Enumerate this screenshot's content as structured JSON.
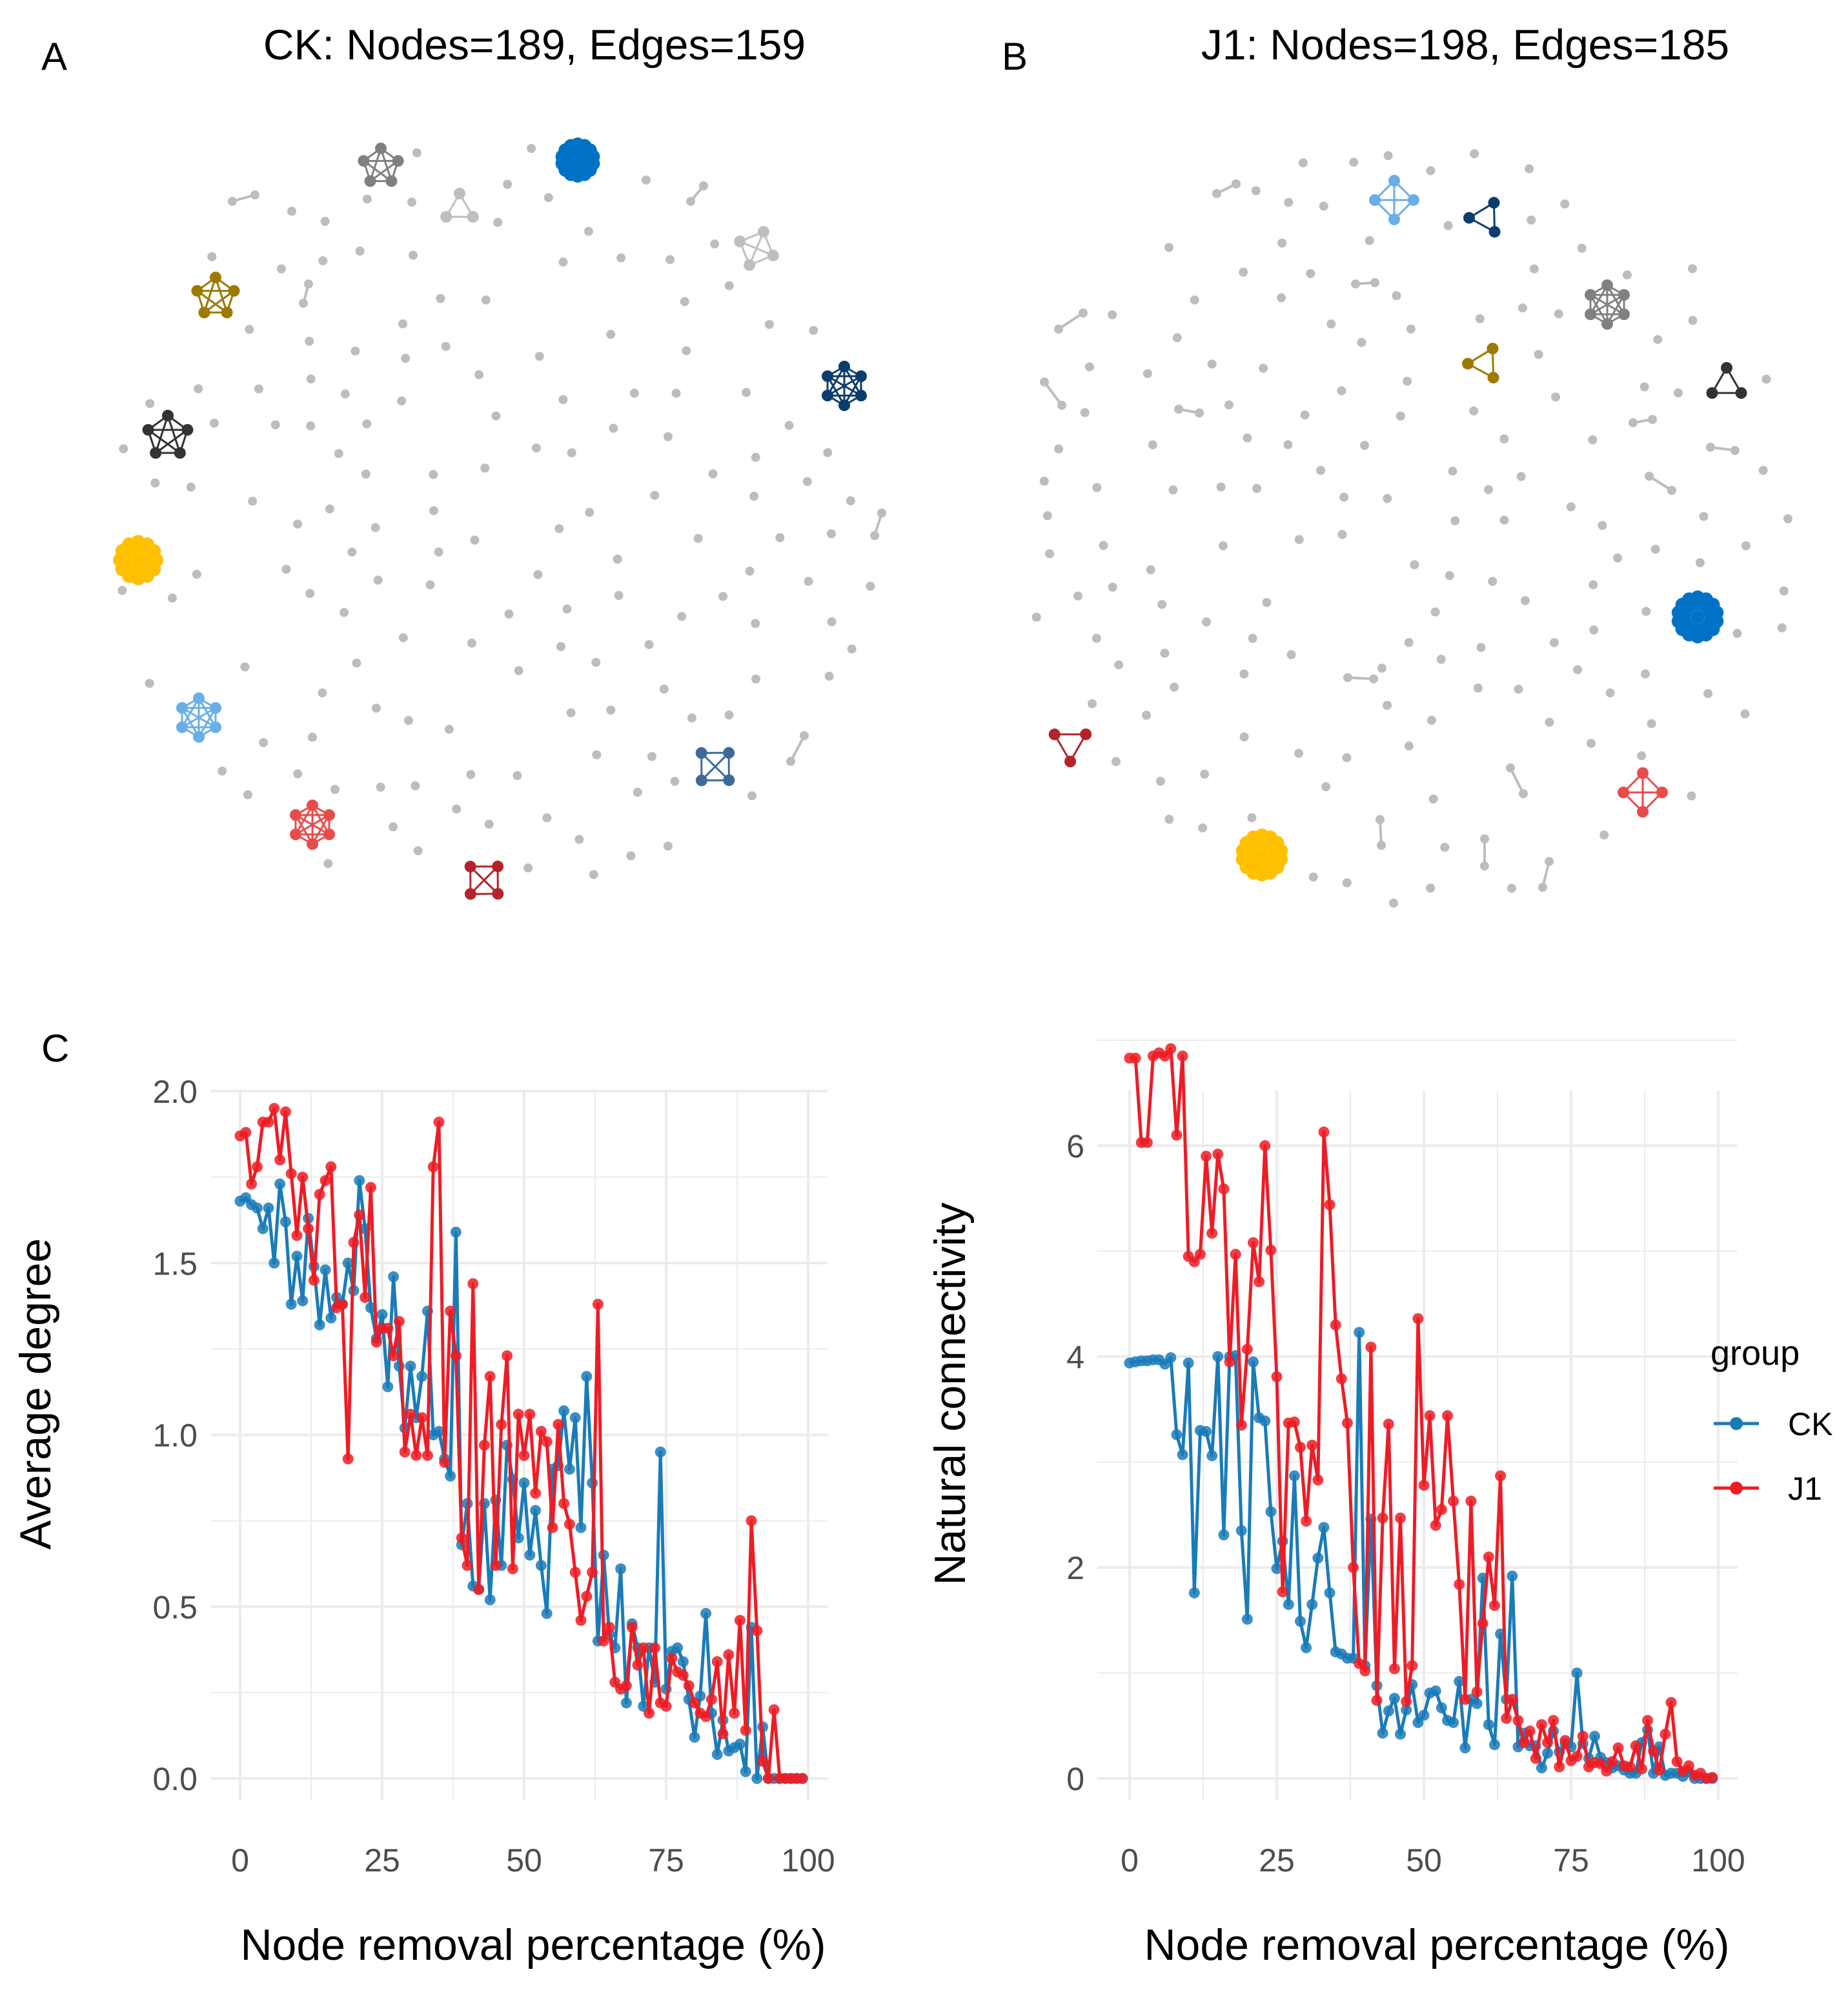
{
  "panel_letters": {
    "a": "A",
    "b": "B",
    "c": "C"
  },
  "colors": {
    "ck": "#1A7BB9",
    "j1": "#EE1C25",
    "grid": "#EBEBEB",
    "tick_text": "#4D4D4D",
    "isolated_node": "#BDBDBD",
    "module_colors": [
      "#0072C6",
      "#808080",
      "#BFBFBF",
      "#9C7A00",
      "#0B3C6E",
      "#333333",
      "#FFC000",
      "#6AAEE8",
      "#E94B4B",
      "#B5232A",
      "#3E6A9A"
    ]
  },
  "networks": {
    "ck": {
      "title": "CK: Nodes=189, Edges=159"
    },
    "j1": {
      "title": "J1: Nodes=198, Edges=185"
    }
  },
  "chart_data": [
    {
      "type": "line",
      "title": "",
      "xlabel": "Node removal percentage (%)",
      "ylabel": "Average degree",
      "xlim": [
        0,
        100
      ],
      "ylim": [
        0,
        2.0
      ],
      "x_ticks": [
        "0",
        "25",
        "50",
        "75",
        "100"
      ],
      "y_ticks": [
        "0.0",
        "0.5",
        "1.0",
        "1.5",
        "2.0"
      ],
      "grid": true,
      "series": [
        {
          "name": "CK",
          "x": [
            0,
            1,
            2,
            3,
            4,
            5,
            6,
            7,
            8,
            9,
            10,
            11,
            12,
            13,
            14,
            15,
            16,
            17,
            18,
            19,
            20,
            21,
            22,
            23,
            24,
            25,
            26,
            27,
            28,
            29,
            30,
            31,
            32,
            33,
            34,
            35,
            36,
            37,
            38,
            39,
            40,
            41,
            42,
            43,
            44,
            45,
            46,
            47,
            48,
            49,
            50,
            51,
            52,
            53,
            54,
            55,
            56,
            57,
            58,
            59,
            60,
            61,
            62,
            63,
            64,
            65,
            66,
            67,
            68,
            69,
            70,
            71,
            72,
            73,
            74,
            75,
            76,
            77,
            78,
            79,
            80,
            81,
            82,
            83,
            84,
            85,
            86,
            87,
            88,
            89,
            90,
            91,
            92,
            93,
            94,
            95,
            96,
            97,
            98,
            99
          ],
          "values": [
            1.68,
            1.69,
            1.67,
            1.66,
            1.6,
            1.66,
            1.5,
            1.73,
            1.62,
            1.38,
            1.52,
            1.39,
            1.63,
            1.49,
            1.32,
            1.48,
            1.34,
            1.4,
            1.38,
            1.5,
            1.42,
            1.74,
            1.6,
            1.37,
            1.28,
            1.35,
            1.14,
            1.46,
            1.2,
            1.02,
            1.2,
            1.05,
            1.17,
            1.36,
            1.0,
            1.01,
            0.93,
            0.88,
            1.59,
            0.68,
            0.8,
            0.56,
            0.55,
            0.8,
            0.52,
            0.81,
            0.62,
            0.97,
            0.87,
            0.7,
            0.86,
            0.65,
            0.78,
            0.62,
            0.48,
            0.9,
            0.91,
            1.07,
            0.9,
            1.05,
            0.73,
            1.17,
            0.86,
            0.4,
            0.65,
            0.42,
            0.38,
            0.61,
            0.22,
            0.45,
            0.38,
            0.21,
            0.38,
            0.28,
            0.95,
            0.26,
            0.37,
            0.38,
            0.34,
            0.23,
            0.12,
            0.24,
            0.48,
            0.19,
            0.07,
            0.17,
            0.08,
            0.09,
            0.1,
            0.02,
            0.44,
            0.0,
            0.15,
            0.0,
            0.0,
            0.0,
            0.0,
            0.0,
            0.0,
            0.0
          ]
        },
        {
          "name": "J1",
          "x": [
            0,
            1,
            2,
            3,
            4,
            5,
            6,
            7,
            8,
            9,
            10,
            11,
            12,
            13,
            14,
            15,
            16,
            17,
            18,
            19,
            20,
            21,
            22,
            23,
            24,
            25,
            26,
            27,
            28,
            29,
            30,
            31,
            32,
            33,
            34,
            35,
            36,
            37,
            38,
            39,
            40,
            41,
            42,
            43,
            44,
            45,
            46,
            47,
            48,
            49,
            50,
            51,
            52,
            53,
            54,
            55,
            56,
            57,
            58,
            59,
            60,
            61,
            62,
            63,
            64,
            65,
            66,
            67,
            68,
            69,
            70,
            71,
            72,
            73,
            74,
            75,
            76,
            77,
            78,
            79,
            80,
            81,
            82,
            83,
            84,
            85,
            86,
            87,
            88,
            89,
            90,
            91,
            92,
            93,
            94,
            95,
            96,
            97,
            98,
            99
          ],
          "values": [
            1.87,
            1.88,
            1.73,
            1.78,
            1.91,
            1.91,
            1.95,
            1.8,
            1.94,
            1.76,
            1.58,
            1.75,
            1.6,
            1.45,
            1.7,
            1.74,
            1.78,
            1.37,
            1.38,
            0.93,
            1.56,
            1.64,
            1.4,
            1.72,
            1.27,
            1.31,
            1.31,
            1.23,
            1.33,
            0.95,
            1.06,
            0.94,
            1.05,
            0.94,
            1.78,
            1.91,
            0.92,
            1.36,
            1.23,
            0.7,
            0.62,
            1.44,
            0.55,
            0.97,
            1.17,
            0.62,
            1.03,
            1.23,
            0.61,
            1.06,
            0.94,
            1.06,
            0.83,
            1.01,
            0.98,
            0.73,
            1.03,
            0.8,
            0.74,
            0.6,
            0.46,
            0.53,
            0.6,
            1.38,
            0.4,
            0.44,
            0.28,
            0.26,
            0.27,
            0.44,
            0.33,
            0.38,
            0.19,
            0.38,
            0.22,
            0.21,
            0.35,
            0.31,
            0.3,
            0.27,
            0.22,
            0.19,
            0.18,
            0.23,
            0.34,
            0.13,
            0.36,
            0.19,
            0.46,
            0.14,
            0.75,
            0.43,
            0.05,
            0.0,
            0.2,
            0.0,
            0.0,
            0.0,
            0.0,
            0.0
          ]
        }
      ]
    },
    {
      "type": "line",
      "title": "",
      "xlabel": "Node removal percentage (%)",
      "ylabel": "Natural connectivity",
      "xlim": [
        0,
        100
      ],
      "ylim": [
        0,
        7.0
      ],
      "x_ticks": [
        "0",
        "25",
        "50",
        "75",
        "100"
      ],
      "y_ticks": [
        "0",
        "2",
        "4",
        "6"
      ],
      "grid": true,
      "legend": {
        "title": "group",
        "position": "right",
        "entries": [
          "CK",
          "J1"
        ]
      },
      "series": [
        {
          "name": "CK",
          "x": [
            0,
            1,
            2,
            3,
            4,
            5,
            6,
            7,
            8,
            9,
            10,
            11,
            12,
            13,
            14,
            15,
            16,
            17,
            18,
            19,
            20,
            21,
            22,
            23,
            24,
            25,
            26,
            27,
            28,
            29,
            30,
            31,
            32,
            33,
            34,
            35,
            36,
            37,
            38,
            39,
            40,
            41,
            42,
            43,
            44,
            45,
            46,
            47,
            48,
            49,
            50,
            51,
            52,
            53,
            54,
            55,
            56,
            57,
            58,
            59,
            60,
            61,
            62,
            63,
            64,
            65,
            66,
            67,
            68,
            69,
            70,
            71,
            72,
            73,
            74,
            75,
            76,
            77,
            78,
            79,
            80,
            81,
            82,
            83,
            84,
            85,
            86,
            87,
            88,
            89,
            90,
            91,
            92,
            93,
            94,
            95,
            96,
            97,
            98,
            99
          ],
          "values": [
            3.94,
            3.95,
            3.96,
            3.96,
            3.97,
            3.97,
            3.93,
            3.99,
            3.26,
            3.07,
            3.94,
            1.76,
            3.3,
            3.29,
            3.06,
            4.0,
            2.31,
            4.0,
            4.01,
            2.35,
            1.51,
            3.95,
            3.42,
            3.39,
            2.53,
            1.99,
            2.25,
            1.65,
            2.87,
            1.49,
            1.24,
            1.65,
            2.09,
            2.38,
            1.76,
            1.2,
            1.18,
            1.14,
            1.14,
            4.23,
            1.07,
            2.46,
            0.88,
            0.43,
            0.64,
            0.76,
            0.42,
            0.65,
            0.89,
            0.53,
            0.6,
            0.81,
            0.83,
            0.67,
            0.55,
            0.53,
            0.92,
            0.29,
            0.75,
            0.71,
            1.9,
            0.51,
            0.32,
            1.37,
            0.75,
            1.92,
            0.3,
            0.43,
            0.31,
            0.31,
            0.1,
            0.24,
            0.45,
            0.25,
            0.33,
            0.3,
            1.0,
            0.33,
            0.19,
            0.4,
            0.2,
            0.15,
            0.1,
            0.12,
            0.08,
            0.05,
            0.05,
            0.34,
            0.46,
            0.05,
            0.3,
            0.03,
            0.05,
            0.05,
            0.02,
            0.06,
            0.0,
            0.0,
            0.0,
            0.0
          ]
        },
        {
          "name": "J1",
          "x": [
            0,
            1,
            2,
            3,
            4,
            5,
            6,
            7,
            8,
            9,
            10,
            11,
            12,
            13,
            14,
            15,
            16,
            17,
            18,
            19,
            20,
            21,
            22,
            23,
            24,
            25,
            26,
            27,
            28,
            29,
            30,
            31,
            32,
            33,
            34,
            35,
            36,
            37,
            38,
            39,
            40,
            41,
            42,
            43,
            44,
            45,
            46,
            47,
            48,
            49,
            50,
            51,
            52,
            53,
            54,
            55,
            56,
            57,
            58,
            59,
            60,
            61,
            62,
            63,
            64,
            65,
            66,
            67,
            68,
            69,
            70,
            71,
            72,
            73,
            74,
            75,
            76,
            77,
            78,
            79,
            80,
            81,
            82,
            83,
            84,
            85,
            86,
            87,
            88,
            89,
            90,
            91,
            92,
            93,
            94,
            95,
            96,
            97,
            98,
            99
          ],
          "values": [
            6.83,
            6.83,
            6.03,
            6.03,
            6.85,
            6.88,
            6.85,
            6.92,
            6.1,
            6.85,
            4.95,
            4.9,
            4.97,
            5.9,
            5.17,
            5.92,
            5.59,
            3.95,
            4.97,
            3.35,
            4.07,
            5.08,
            4.71,
            6.0,
            5.01,
            3.81,
            1.77,
            3.37,
            3.38,
            3.14,
            2.44,
            3.16,
            2.83,
            6.13,
            5.44,
            4.3,
            3.79,
            3.37,
            2.0,
            1.09,
            1.02,
            4.09,
            0.74,
            2.47,
            3.36,
            1.04,
            2.47,
            0.73,
            1.07,
            4.36,
            2.78,
            3.44,
            2.4,
            2.55,
            3.44,
            2.63,
            1.84,
            0.75,
            2.63,
            0.82,
            1.47,
            2.1,
            1.64,
            2.87,
            0.57,
            0.75,
            0.55,
            0.34,
            0.45,
            0.19,
            0.51,
            0.34,
            0.55,
            0.11,
            0.36,
            0.17,
            0.21,
            0.4,
            0.11,
            0.15,
            0.14,
            0.07,
            0.16,
            0.29,
            0.12,
            0.11,
            0.31,
            0.09,
            0.55,
            0.26,
            0.08,
            0.42,
            0.72,
            0.16,
            0.07,
            0.12,
            0.03,
            0.05,
            0.0,
            0.01
          ]
        }
      ]
    }
  ]
}
